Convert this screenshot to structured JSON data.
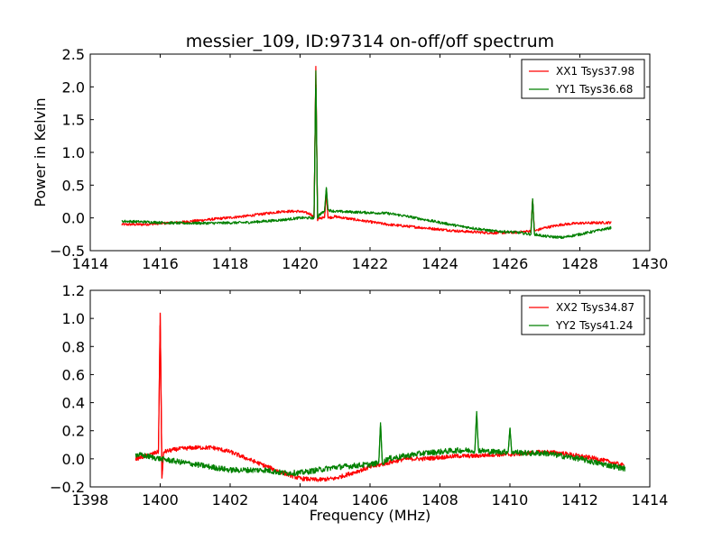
{
  "figure": {
    "title": "messier_109, ID:97314 on-off/off spectrum"
  },
  "chart_data": [
    {
      "type": "line",
      "title": "messier_109, ID:97314 on-off/off spectrum",
      "xlabel": "",
      "ylabel": "Power in Kelvin",
      "xlim": [
        1414,
        1430
      ],
      "ylim": [
        -0.5,
        2.5
      ],
      "xticks": [
        1414,
        1416,
        1418,
        1420,
        1422,
        1424,
        1426,
        1428,
        1430
      ],
      "yticks": [
        -0.5,
        0.0,
        0.5,
        1.0,
        1.5,
        2.0,
        2.5
      ],
      "xtick_labels": [
        "1414",
        "1416",
        "1418",
        "1420",
        "1422",
        "1424",
        "1426",
        "1428",
        "1430"
      ],
      "ytick_labels": [
        "−0.5",
        "0.0",
        "0.5",
        "1.0",
        "1.5",
        "2.0",
        "2.5"
      ],
      "grid": false,
      "legend_position": "top-right",
      "x_range": [
        1414.9,
        1428.9
      ],
      "series": [
        {
          "name": "XX1 Tsys37.98",
          "color": "#ff0000",
          "x": [
            1414.9,
            1415.5,
            1416.5,
            1417.5,
            1418.5,
            1419.5,
            1420.0,
            1420.3,
            1420.4,
            1420.45,
            1420.5,
            1420.55,
            1420.7,
            1420.75,
            1420.8,
            1421.0,
            1421.5,
            1422.5,
            1423.5,
            1424.5,
            1425.5,
            1426.2,
            1426.6,
            1426.65,
            1426.7,
            1427.0,
            1427.5,
            1428.0,
            1428.9
          ],
          "values": [
            -0.1,
            -0.1,
            -0.07,
            -0.02,
            0.03,
            0.1,
            0.1,
            0.06,
            0.0,
            2.32,
            -0.05,
            0.0,
            0.0,
            0.4,
            0.0,
            0.02,
            -0.02,
            -0.1,
            -0.15,
            -0.2,
            -0.23,
            -0.22,
            -0.2,
            0.28,
            -0.2,
            -0.15,
            -0.1,
            -0.08,
            -0.07
          ],
          "noise": 0.02
        },
        {
          "name": "YY1 Tsys36.68",
          "color": "#008000",
          "x": [
            1414.9,
            1415.5,
            1416.5,
            1417.5,
            1418.5,
            1419.5,
            1420.0,
            1420.3,
            1420.4,
            1420.45,
            1420.5,
            1420.55,
            1420.7,
            1420.75,
            1420.8,
            1421.0,
            1421.5,
            1422.5,
            1423.0,
            1423.5,
            1424.5,
            1425.5,
            1426.2,
            1426.6,
            1426.65,
            1426.7,
            1427.0,
            1427.5,
            1428.0,
            1428.9
          ],
          "values": [
            -0.05,
            -0.06,
            -0.08,
            -0.08,
            -0.07,
            -0.03,
            0.0,
            0.0,
            0.0,
            2.25,
            0.0,
            0.05,
            0.1,
            0.47,
            0.12,
            0.1,
            0.09,
            0.07,
            0.03,
            -0.02,
            -0.12,
            -0.2,
            -0.22,
            -0.25,
            0.3,
            -0.25,
            -0.28,
            -0.3,
            -0.25,
            -0.15
          ],
          "noise": 0.02
        }
      ]
    },
    {
      "type": "line",
      "title": "",
      "xlabel": "Frequency (MHz)",
      "ylabel": "",
      "xlim": [
        1398,
        1414
      ],
      "ylim": [
        -0.2,
        1.2
      ],
      "xticks": [
        1398,
        1400,
        1402,
        1404,
        1406,
        1408,
        1410,
        1412,
        1414
      ],
      "yticks": [
        -0.2,
        0.0,
        0.2,
        0.4,
        0.6,
        0.8,
        1.0,
        1.2
      ],
      "xtick_labels": [
        "1398",
        "1400",
        "1402",
        "1404",
        "1406",
        "1408",
        "1410",
        "1412",
        "1414"
      ],
      "ytick_labels": [
        "−0.2",
        "0.0",
        "0.2",
        "0.4",
        "0.6",
        "0.8",
        "1.0",
        "1.2"
      ],
      "grid": false,
      "legend_position": "top-right",
      "x_range": [
        1399.3,
        1413.3
      ],
      "series": [
        {
          "name": "XX2 Tsys34.87",
          "color": "#ff0000",
          "x": [
            1399.3,
            1399.6,
            1399.95,
            1400.0,
            1400.05,
            1400.1,
            1400.5,
            1401.0,
            1401.5,
            1402.0,
            1402.5,
            1403.0,
            1403.5,
            1404.0,
            1404.5,
            1405.0,
            1405.5,
            1406.0,
            1406.5,
            1407.0,
            1407.5,
            1408.0,
            1408.5,
            1409.0,
            1409.5,
            1410.0,
            1410.5,
            1411.0,
            1411.5,
            1412.0,
            1412.5,
            1413.3
          ],
          "values": [
            0.0,
            0.02,
            0.05,
            1.04,
            -0.14,
            0.05,
            0.07,
            0.08,
            0.08,
            0.05,
            0.0,
            -0.05,
            -0.1,
            -0.14,
            -0.15,
            -0.14,
            -0.1,
            -0.06,
            -0.03,
            0.0,
            0.0,
            0.01,
            0.02,
            0.02,
            0.03,
            0.03,
            0.04,
            0.05,
            0.04,
            0.02,
            0.0,
            -0.05
          ],
          "noise": 0.015
        },
        {
          "name": "YY2 Tsys41.24",
          "color": "#008000",
          "x": [
            1399.3,
            1399.6,
            1400.0,
            1400.5,
            1401.0,
            1401.5,
            1402.0,
            1402.5,
            1403.0,
            1403.5,
            1404.0,
            1404.5,
            1405.0,
            1405.5,
            1406.0,
            1406.25,
            1406.3,
            1406.35,
            1406.5,
            1407.0,
            1407.5,
            1408.0,
            1408.5,
            1409.0,
            1409.05,
            1409.1,
            1409.5,
            1409.95,
            1410.0,
            1410.05,
            1410.5,
            1411.0,
            1411.5,
            1412.0,
            1412.5,
            1413.3
          ],
          "values": [
            0.03,
            0.02,
            0.0,
            -0.02,
            -0.04,
            -0.06,
            -0.08,
            -0.08,
            -0.08,
            -0.1,
            -0.1,
            -0.08,
            -0.06,
            -0.05,
            -0.04,
            -0.03,
            0.26,
            -0.03,
            0.0,
            0.02,
            0.04,
            0.05,
            0.06,
            0.06,
            0.34,
            0.06,
            0.05,
            0.05,
            0.22,
            0.05,
            0.04,
            0.04,
            0.02,
            0.0,
            -0.03,
            -0.07
          ],
          "noise": 0.02
        }
      ]
    }
  ]
}
